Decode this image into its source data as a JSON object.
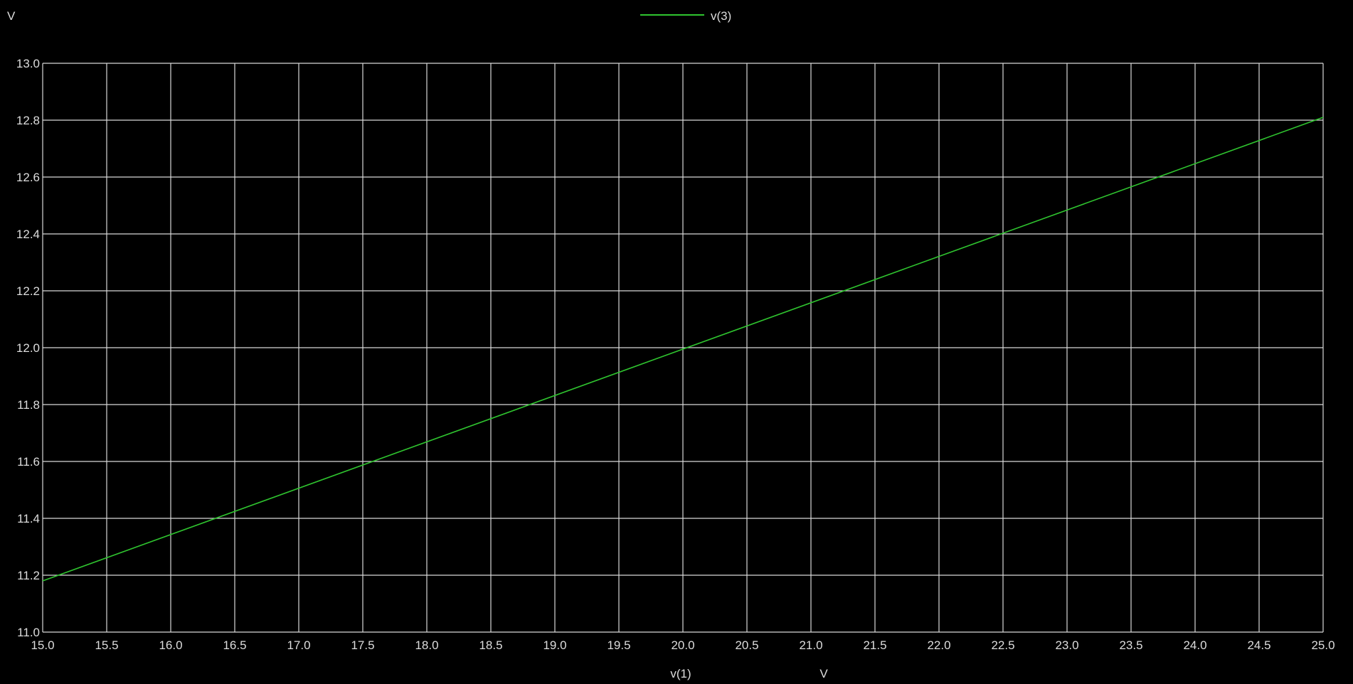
{
  "colors": {
    "background": "#000000",
    "grid": "#d8d8d8",
    "text": "#dddddd",
    "series": "#2fc42f"
  },
  "chart_data": {
    "type": "line",
    "y_unit_label": "V",
    "xlabel": "v(1)",
    "x_unit_label": "V",
    "xlim": [
      15.0,
      25.0
    ],
    "ylim": [
      11.0,
      13.0
    ],
    "x_ticks": [
      "15.0",
      "15.5",
      "16.0",
      "16.5",
      "17.0",
      "17.5",
      "18.0",
      "18.5",
      "19.0",
      "19.5",
      "20.0",
      "20.5",
      "21.0",
      "21.5",
      "22.0",
      "22.5",
      "23.0",
      "23.5",
      "24.0",
      "24.5",
      "25.0"
    ],
    "y_ticks": [
      "13.0",
      "12.8",
      "12.6",
      "12.4",
      "12.2",
      "12.0",
      "11.8",
      "11.6",
      "11.4",
      "11.2",
      "11.0"
    ],
    "grid": true,
    "legend_position": "top-center",
    "series": [
      {
        "name": "v(3)",
        "x": [
          15.0,
          25.0
        ],
        "y": [
          11.18,
          12.81
        ]
      }
    ]
  }
}
